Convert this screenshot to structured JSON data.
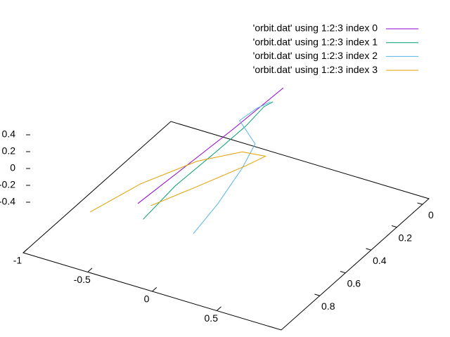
{
  "chart_data": {
    "type": "line3d",
    "series": [
      {
        "name": "'orbit.dat' using 1:2:3 index 0",
        "color": "#9400d3",
        "x": [
          -0.31,
          -0.14,
          0.07,
          0.14,
          0.12
        ],
        "y": [
          0.9,
          0.72,
          0.55,
          0.35,
          0.2
        ],
        "z": [
          -0.37,
          -0.12,
          0.2,
          0.3,
          0.25
        ]
      },
      {
        "name": "'orbit.dat' using 1:2:3 index 1",
        "color": "#009e73",
        "x": [
          -0.27,
          -0.17,
          0.01,
          0.08,
          0.07,
          0.09
        ],
        "y": [
          0.9,
          0.75,
          0.6,
          0.45,
          0.3,
          0.25
        ],
        "z": [
          -0.54,
          -0.3,
          0.0,
          0.12,
          0.14,
          0.14
        ]
      },
      {
        "name": "'orbit.dat' using 1:2:3 index 2",
        "color": "#56b4e9",
        "x": [
          0.12,
          0.21,
          0.3,
          0.3,
          0.13,
          0.03,
          0.06,
          0.07
        ],
        "y": [
          0.9,
          0.8,
          0.7,
          0.6,
          0.5,
          0.45,
          0.35,
          0.25
        ],
        "z": [
          -0.53,
          -0.27,
          0.06,
          0.21,
          0.16,
          0.16,
          0.18,
          0.13
        ]
      },
      {
        "name": "'orbit.dat' using 1:2:3 index 3",
        "color": "#e69f00",
        "x": [
          -0.68,
          -0.39,
          -0.05,
          0.2,
          0.33,
          0.23,
          0.0,
          -0.21
        ],
        "y": [
          0.9,
          0.8,
          0.7,
          0.6,
          0.55,
          0.6,
          0.75,
          0.9
        ],
        "z": [
          -0.64,
          -0.31,
          -0.02,
          0.07,
          0.01,
          -0.08,
          -0.23,
          -0.35
        ]
      }
    ],
    "xlim": [
      -1,
      1
    ],
    "ylim": [
      -0.05,
      1.1
    ],
    "zlim": [
      -1,
      0.4
    ],
    "xticks": [
      -1,
      -0.5,
      0,
      0.5
    ],
    "yticks": [
      0,
      0.2,
      0.4,
      0.6,
      0.8
    ],
    "zticks": [
      -0.4,
      -0.2,
      0,
      0.2,
      0.4
    ],
    "legend": "top-right"
  }
}
